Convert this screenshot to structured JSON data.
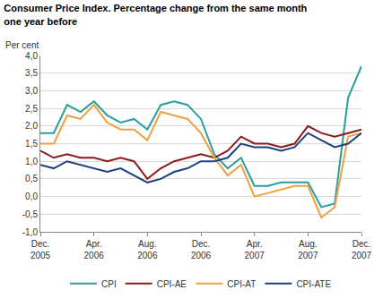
{
  "chart_data": {
    "type": "line",
    "title": "Consumer Price Index. Percentage change from the same month\none year before",
    "y_label": "Per cent",
    "categories": [
      "Dec.\n2005",
      null,
      null,
      null,
      "Apr.\n2006",
      null,
      null,
      null,
      "Aug.\n2006",
      null,
      null,
      null,
      "Dec.\n2006",
      null,
      null,
      null,
      "Apr.\n2007",
      null,
      null,
      null,
      "Aug.\n2007",
      null,
      null,
      null,
      "Dec.\n2007"
    ],
    "series": [
      {
        "name": "CPI",
        "color": "#2a9d9d",
        "values": [
          1.8,
          1.8,
          2.6,
          2.4,
          2.7,
          2.3,
          2.1,
          2.2,
          1.9,
          2.6,
          2.7,
          2.6,
          2.2,
          1.2,
          0.8,
          1.1,
          0.3,
          0.3,
          0.4,
          0.4,
          0.4,
          -0.3,
          -0.2,
          2.8,
          3.7
        ]
      },
      {
        "name": "CPI-AE",
        "color": "#8b1a1a",
        "values": [
          1.3,
          1.1,
          1.2,
          1.1,
          1.1,
          1.0,
          1.1,
          1.0,
          0.5,
          0.8,
          1.0,
          1.1,
          1.2,
          1.1,
          1.3,
          1.7,
          1.5,
          1.5,
          1.4,
          1.5,
          2.0,
          1.8,
          1.7,
          1.8,
          1.9
        ]
      },
      {
        "name": "CPI-AT",
        "color": "#f0a040",
        "values": [
          1.5,
          1.5,
          2.3,
          2.2,
          2.6,
          2.1,
          1.9,
          1.9,
          1.6,
          2.4,
          2.3,
          2.2,
          1.8,
          1.1,
          0.6,
          0.9,
          0.0,
          0.1,
          0.2,
          0.3,
          0.3,
          -0.6,
          -0.3,
          1.7,
          1.8
        ]
      },
      {
        "name": "CPI-ATE",
        "color": "#1f3f7f",
        "values": [
          0.9,
          0.8,
          1.0,
          0.9,
          0.8,
          0.7,
          0.8,
          0.6,
          0.4,
          0.5,
          0.7,
          0.8,
          1.0,
          1.0,
          1.1,
          1.5,
          1.4,
          1.4,
          1.3,
          1.4,
          1.8,
          1.6,
          1.4,
          1.5,
          1.8
        ]
      }
    ],
    "ylim": [
      -1.0,
      4.0
    ],
    "yticks": [
      {
        "value": -1.0,
        "label": "-1,0"
      },
      {
        "value": -0.5,
        "label": "-0,5"
      },
      {
        "value": 0.0,
        "label": "0,0"
      },
      {
        "value": 0.5,
        "label": "0,5"
      },
      {
        "value": 1.0,
        "label": "1,0"
      },
      {
        "value": 1.5,
        "label": "1,5"
      },
      {
        "value": 2.0,
        "label": "2,0"
      },
      {
        "value": 2.5,
        "label": "2,5"
      },
      {
        "value": 3.0,
        "label": "3,0"
      },
      {
        "value": 3.5,
        "label": "3,5"
      },
      {
        "value": 4.0,
        "label": "4,0"
      }
    ],
    "grid": true,
    "legend": "bottom"
  }
}
